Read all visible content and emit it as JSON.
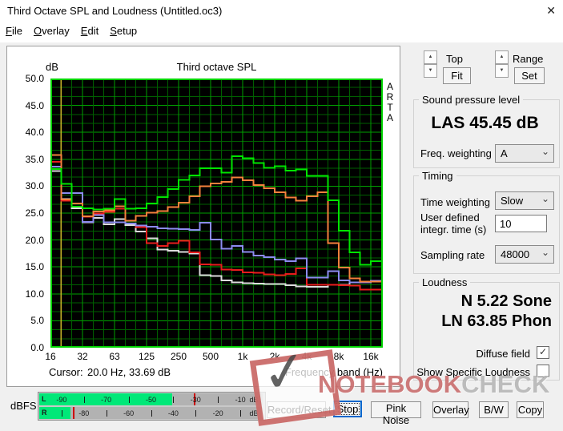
{
  "window": {
    "title": "Third Octave SPL and Loudness (Untitled.oc3)",
    "close_glyph": "✕"
  },
  "menu": {
    "items": [
      "File",
      "Overlay",
      "Edit",
      "Setup"
    ]
  },
  "chart": {
    "title": "Third octave SPL",
    "y_unit": "dB",
    "corner_letters": [
      "A",
      "R",
      "T",
      "A"
    ],
    "y_ticks": [
      "50.0",
      "45.0",
      "40.0",
      "35.0",
      "30.0",
      "25.0",
      "20.0",
      "15.0",
      "10.0",
      "5.0",
      "0.0"
    ],
    "x_ticks": [
      "16",
      "32",
      "63",
      "125",
      "250",
      "500",
      "1k",
      "2k",
      "4k",
      "8k",
      "16k"
    ],
    "cursor_label": "Cursor:",
    "cursor_value": "20.0 Hz, 33.69 dB",
    "x_axis_label": "Frequency band (Hz)"
  },
  "chart_data": {
    "type": "line",
    "style": "step-spectrum",
    "xlabel": "Frequency band (Hz)",
    "ylabel": "dB",
    "ylim": [
      0,
      50
    ],
    "grid": true,
    "background": "#000000",
    "grid_minor_color": "#005f00",
    "grid_major_color": "#00a000",
    "border_color": "#00d200",
    "cursor_color": "#c8b428",
    "cursor": {
      "freq_hz": 20.0,
      "level_db": 33.69
    },
    "categories": [
      "16",
      "20",
      "25",
      "31.5",
      "40",
      "50",
      "63",
      "80",
      "100",
      "125",
      "160",
      "200",
      "250",
      "315",
      "400",
      "500",
      "630",
      "800",
      "1k",
      "1.25k",
      "1.6k",
      "2k",
      "2.5k",
      "3.15k",
      "4k",
      "5k",
      "6.3k",
      "8k",
      "10k",
      "12.5k",
      "16k"
    ],
    "series": [
      {
        "name": "green-trace",
        "color": "#00e400",
        "values": [
          33.2,
          30.4,
          26.2,
          25.9,
          25.7,
          25.8,
          27.6,
          25.8,
          25.9,
          26.8,
          28.0,
          29.5,
          31.2,
          32.0,
          33.3,
          33.3,
          32.5,
          35.6,
          35.2,
          34.3,
          33.4,
          33.7,
          32.9,
          33.1,
          31.9,
          31.9,
          27.4,
          21.7,
          17.7,
          15.4,
          16.1
        ]
      },
      {
        "name": "orange-trace",
        "color": "#f5813c",
        "values": [
          35.8,
          27.5,
          26.8,
          24.4,
          25.3,
          25.5,
          26.3,
          23.6,
          24.5,
          25.1,
          25.4,
          26.1,
          26.9,
          28.1,
          30.0,
          30.5,
          30.8,
          31.6,
          31.1,
          30.2,
          29.6,
          28.9,
          27.9,
          27.3,
          28.1,
          28.9,
          19.4,
          14.9,
          12.9,
          12.3,
          12.3
        ]
      },
      {
        "name": "blue-trace",
        "color": "#8c8cf0",
        "values": [
          33.6,
          28.7,
          28.7,
          23.4,
          24.6,
          23.3,
          23.3,
          23.1,
          22.7,
          22.5,
          22.2,
          22.1,
          22.0,
          21.9,
          23.2,
          20.1,
          18.4,
          18.9,
          17.8,
          17.1,
          16.8,
          16.4,
          16.1,
          16.6,
          13.0,
          13.0,
          14.2,
          12.5,
          12.1,
          12.1,
          12.4
        ]
      },
      {
        "name": "red-trace",
        "color": "#e81c1c",
        "values": [
          34.5,
          27.3,
          26.8,
          24.3,
          24.9,
          25.2,
          25.8,
          23.1,
          22.4,
          19.4,
          18.9,
          19.4,
          19.9,
          17.7,
          15.5,
          15.4,
          14.5,
          14.4,
          14.0,
          13.9,
          13.6,
          13.5,
          13.7,
          14.7,
          11.7,
          11.7,
          11.7,
          11.6,
          11.5,
          10.8,
          10.8
        ]
      },
      {
        "name": "white-trace",
        "color": "#dcdcdc",
        "values": [
          32.8,
          27.6,
          25.9,
          23.3,
          24.1,
          22.9,
          23.9,
          22.8,
          21.6,
          20.3,
          18.2,
          18.0,
          17.8,
          17.5,
          13.5,
          13.3,
          12.5,
          12.1,
          12.0,
          11.9,
          11.8,
          11.8,
          11.6,
          11.4,
          11.3,
          11.3,
          11.7,
          11.7,
          12.1,
          12.1,
          12.3
        ]
      }
    ]
  },
  "meter": {
    "unit_label": "dBFS",
    "scale_min_db": -100,
    "rows": [
      {
        "channel": "L",
        "labels_db": [
          -90,
          -70,
          -50,
          -30,
          -10
        ],
        "ticks_db": [
          -80,
          -60,
          -40,
          -20
        ],
        "unit": "dB",
        "fill_db": -40.5,
        "peak_db": -31
      },
      {
        "channel": "R",
        "labels_db": [
          -80,
          -60,
          -40,
          -20
        ],
        "ticks_db": [
          -90,
          -70,
          -50,
          -30,
          -10
        ],
        "unit": "dB",
        "fill_db": -86,
        "peak_db": -85
      }
    ],
    "fill_color": "#00e878",
    "peak_color": "#cc0000"
  },
  "buttons": [
    {
      "label": "Record/Reset",
      "focused": false
    },
    {
      "label": "Stop",
      "focused": true
    },
    {
      "label": "Pink Noise",
      "focused": false
    },
    {
      "label": "Overlay",
      "focused": false
    },
    {
      "label": "B/W",
      "focused": false
    },
    {
      "label": "Copy",
      "focused": false
    }
  ],
  "ui": {
    "spinner_up": "▲",
    "spinner_down": "▼",
    "combo_chevron": "⌄"
  },
  "panel": {
    "top_control": {
      "label": "Top",
      "button": "Fit"
    },
    "range_control": {
      "label": "Range",
      "button": "Set"
    },
    "spl": {
      "group": "Sound pressure level",
      "value": "LAS 45.45 dB",
      "freq_weighting_label": "Freq. weighting",
      "freq_weighting_value": "A"
    },
    "timing": {
      "group": "Timing",
      "time_weighting_label": "Time weighting",
      "time_weighting_value": "Slow",
      "integr_label_1": "User defined",
      "integr_label_2": "integr. time (s)",
      "integr_value": "10",
      "sampling_label": "Sampling rate",
      "sampling_value": "48000"
    },
    "loudness": {
      "group": "Loudness",
      "sone": "N 5.22 Sone",
      "phon": "LN 63.85 Phon",
      "diffuse_label": "Diffuse field",
      "diffuse_checked": true,
      "specific_label": "Show Specific Loudness",
      "specific_checked": false,
      "check_glyph": "✓"
    }
  },
  "watermark": {
    "check_glyph": "✓",
    "text_red": "NOTEBOOK",
    "text_gray": "CHECK",
    "red_color": "#c0504d",
    "gray_color": "#b2b2b2"
  }
}
